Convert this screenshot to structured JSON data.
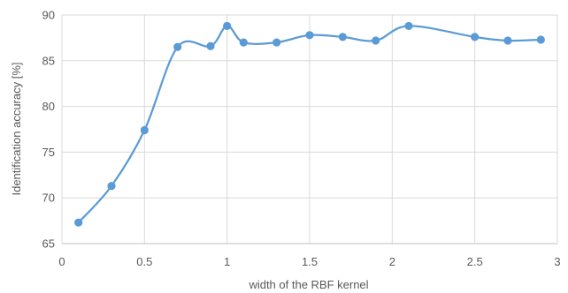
{
  "chart_data": {
    "type": "line",
    "title": "",
    "xlabel": "width of the RBF kernel",
    "ylabel": "Identification accuracy [%]",
    "xlim": [
      0,
      3
    ],
    "ylim": [
      65,
      90
    ],
    "x_ticks": [
      "0",
      "0.5",
      "1",
      "1.5",
      "2",
      "2.5",
      "3"
    ],
    "y_ticks": [
      "65",
      "70",
      "75",
      "80",
      "85",
      "90"
    ],
    "grid": true,
    "smooth": true,
    "series": [
      {
        "color": "#5b9bd5",
        "x": [
          0.1,
          0.3,
          0.5,
          0.7,
          0.9,
          1.0,
          1.1,
          1.3,
          1.5,
          1.7,
          1.9,
          2.1,
          2.5,
          2.7,
          2.9
        ],
        "y": [
          67.3,
          71.3,
          77.4,
          86.5,
          86.6,
          88.8,
          87.0,
          87.0,
          87.8,
          87.6,
          87.2,
          88.8,
          87.6,
          87.2,
          87.3
        ]
      }
    ]
  }
}
